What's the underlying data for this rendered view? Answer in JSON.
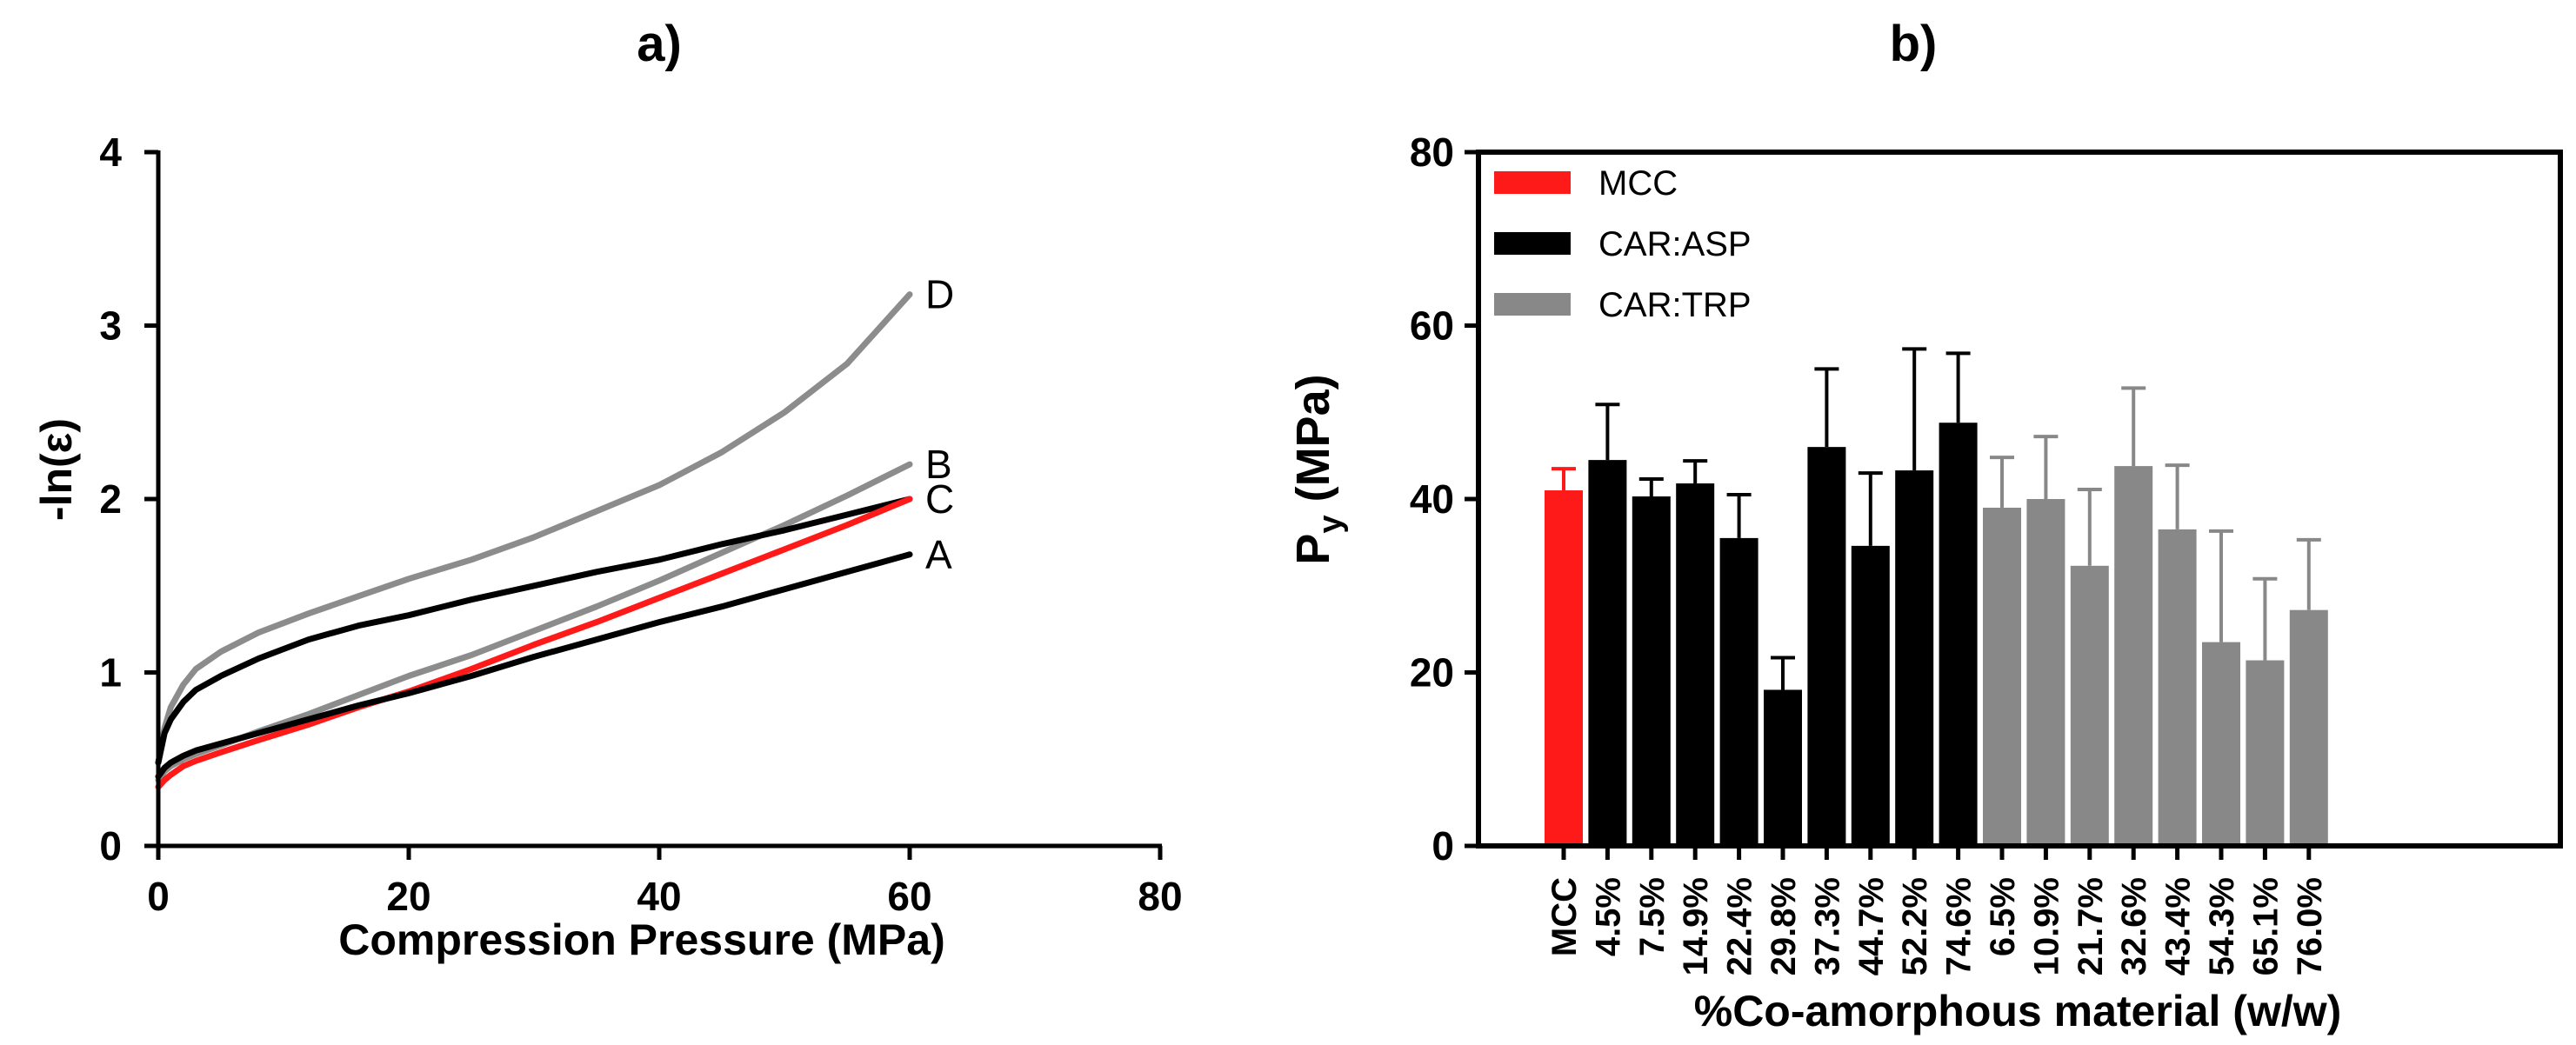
{
  "chart_data": [
    {
      "panel_label": "a)",
      "type": "line",
      "title": "",
      "xlabel": "Compression Pressure (MPa)",
      "ylabel": "-ln(ε)",
      "xlim": [
        0,
        80
      ],
      "ylim": [
        0,
        4
      ],
      "xticks": [
        "0",
        "20",
        "40",
        "60",
        "80"
      ],
      "yticks": [
        "0",
        "1",
        "2",
        "3",
        "4"
      ],
      "x": [
        0,
        0.5,
        1,
        2,
        3,
        5,
        8,
        12,
        16,
        20,
        25,
        30,
        35,
        40,
        45,
        50,
        55,
        60
      ],
      "series": [
        {
          "name": "D",
          "color": "#8c8c8c",
          "values": [
            0.48,
            0.68,
            0.8,
            0.93,
            1.02,
            1.12,
            1.23,
            1.34,
            1.44,
            1.54,
            1.65,
            1.78,
            1.93,
            2.08,
            2.27,
            2.5,
            2.78,
            3.18
          ]
        },
        {
          "name": "B",
          "color": "#8c8c8c",
          "values": [
            0.38,
            0.43,
            0.46,
            0.5,
            0.53,
            0.58,
            0.66,
            0.76,
            0.87,
            0.98,
            1.1,
            1.24,
            1.38,
            1.53,
            1.69,
            1.85,
            2.02,
            2.2
          ]
        },
        {
          "name": "C",
          "color": "#000000",
          "values": [
            0.48,
            0.65,
            0.73,
            0.83,
            0.9,
            0.98,
            1.08,
            1.19,
            1.27,
            1.33,
            1.42,
            1.5,
            1.58,
            1.65,
            1.74,
            1.82,
            1.91,
            2.0
          ]
        },
        {
          "name": "red",
          "color": "#ff1a1a",
          "values": [
            0.34,
            0.38,
            0.41,
            0.46,
            0.49,
            0.54,
            0.61,
            0.7,
            0.8,
            0.89,
            1.02,
            1.16,
            1.29,
            1.43,
            1.57,
            1.71,
            1.85,
            2.0
          ]
        },
        {
          "name": "A",
          "color": "#000000",
          "values": [
            0.4,
            0.45,
            0.48,
            0.52,
            0.55,
            0.59,
            0.65,
            0.73,
            0.81,
            0.88,
            0.98,
            1.09,
            1.19,
            1.29,
            1.38,
            1.48,
            1.58,
            1.68
          ]
        }
      ],
      "curve_labels": [
        "D",
        "B",
        "C",
        "A"
      ]
    },
    {
      "panel_label": "b)",
      "type": "bar",
      "title": "",
      "xlabel": "%Co-amorphous material (w/w)",
      "ylabel_main": "P",
      "ylabel_sub": "y",
      "ylabel_unit": " (MPa)",
      "ylim": [
        0,
        80
      ],
      "yticks": [
        "0",
        "20",
        "40",
        "60",
        "80"
      ],
      "categories": [
        "MCC",
        "4.5%",
        "7.5%",
        "14.9%",
        "22.4%",
        "29.8%",
        "37.3%",
        "44.7%",
        "52.2%",
        "74.6%",
        "6.5%",
        "10.9%",
        "21.7%",
        "32.6%",
        "43.4%",
        "54.3%",
        "65.1%",
        "76.0%"
      ],
      "values": [
        41,
        44.5,
        40.3,
        41.8,
        35.5,
        18,
        46,
        34.6,
        43.3,
        48.8,
        39,
        40,
        32.3,
        43.8,
        36.5,
        23.5,
        21.4,
        27.2
      ],
      "errors": [
        2.5,
        6.4,
        2,
        2.6,
        5,
        3.7,
        9,
        8.4,
        14,
        8,
        5.8,
        7.2,
        8.8,
        9,
        7.4,
        12.8,
        9.4,
        8.1
      ],
      "groups": [
        "MCC",
        "CAR:ASP",
        "CAR:ASP",
        "CAR:ASP",
        "CAR:ASP",
        "CAR:ASP",
        "CAR:ASP",
        "CAR:ASP",
        "CAR:ASP",
        "CAR:ASP",
        "CAR:TRP",
        "CAR:TRP",
        "CAR:TRP",
        "CAR:TRP",
        "CAR:TRP",
        "CAR:TRP",
        "CAR:TRP",
        "CAR:TRP"
      ],
      "legend": [
        {
          "name": "MCC",
          "color": "#ff1a1a"
        },
        {
          "name": "CAR:ASP",
          "color": "#000000"
        },
        {
          "name": "CAR:TRP",
          "color": "#888888"
        }
      ],
      "legend_position": "top-left"
    }
  ]
}
